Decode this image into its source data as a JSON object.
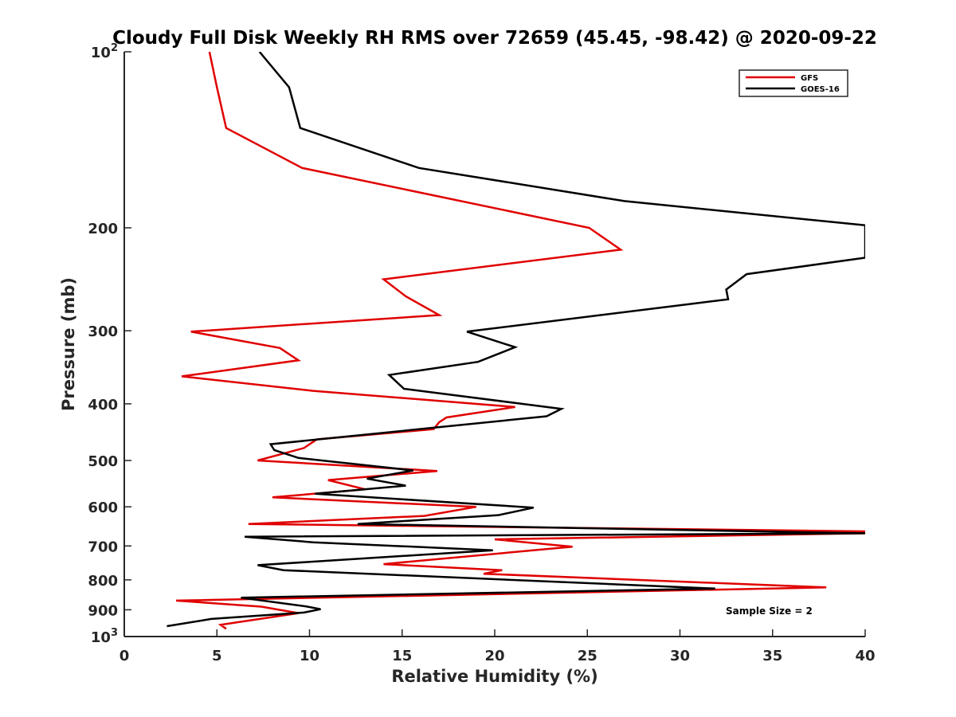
{
  "chart_data": {
    "type": "line",
    "title": "Cloudy Full Disk Weekly RH RMS over 72659 (45.45, -98.42) @ 2020-09-22",
    "xlabel": "Relative Humidity (%)",
    "ylabel": "Pressure (mb)",
    "xlim": [
      0,
      40
    ],
    "ylim": [
      100,
      1000
    ],
    "y_scale": "log",
    "y_reversed": true,
    "grid": false,
    "legend_position": "top-right",
    "xticks": [
      "0",
      "5",
      "10",
      "15",
      "20",
      "25",
      "30",
      "35",
      "40"
    ],
    "yticks": [
      {
        "value": 100,
        "base": "10",
        "exp": "2"
      },
      {
        "value": 200,
        "base": "200",
        "exp": ""
      },
      {
        "value": 300,
        "base": "300",
        "exp": ""
      },
      {
        "value": 400,
        "base": "400",
        "exp": ""
      },
      {
        "value": 500,
        "base": "500",
        "exp": ""
      },
      {
        "value": 600,
        "base": "600",
        "exp": ""
      },
      {
        "value": 700,
        "base": "700",
        "exp": ""
      },
      {
        "value": 800,
        "base": "800",
        "exp": ""
      },
      {
        "value": 900,
        "base": "900",
        "exp": ""
      },
      {
        "value": 1000,
        "base": "10",
        "exp": "3"
      }
    ],
    "annotation": "Sample Size = 2",
    "series": [
      {
        "name": "GFS",
        "color": "#e00000",
        "points": [
          [
            4.6,
            100
          ],
          [
            5.0,
            115
          ],
          [
            5.5,
            135
          ],
          [
            9.6,
            158
          ],
          [
            25.1,
            200
          ],
          [
            26.8,
            218
          ],
          [
            14.0,
            245
          ],
          [
            15.2,
            262
          ],
          [
            17.0,
            282
          ],
          [
            3.6,
            301
          ],
          [
            8.4,
            321
          ],
          [
            9.4,
            337
          ],
          [
            3.1,
            359
          ],
          [
            10.2,
            380
          ],
          [
            21.1,
            405
          ],
          [
            17.4,
            422
          ],
          [
            17.0,
            430
          ],
          [
            16.7,
            442
          ],
          [
            10.4,
            460
          ],
          [
            9.7,
            476
          ],
          [
            7.2,
            500
          ],
          [
            16.9,
            521
          ],
          [
            11.0,
            540
          ],
          [
            13.0,
            560
          ],
          [
            8.0,
            578
          ],
          [
            19.0,
            600
          ],
          [
            16.2,
            622
          ],
          [
            6.7,
            642
          ],
          [
            40.0,
            661
          ],
          [
            40.0,
            666
          ],
          [
            20.0,
            682
          ],
          [
            24.2,
            702
          ],
          [
            14.0,
            752
          ],
          [
            20.4,
            770
          ],
          [
            19.4,
            781
          ],
          [
            37.9,
            824
          ],
          [
            2.8,
            868
          ],
          [
            7.4,
            889
          ],
          [
            9.4,
            912
          ],
          [
            5.2,
            955
          ],
          [
            5.5,
            970
          ]
        ]
      },
      {
        "name": "GOES-16",
        "color": "#000000",
        "points": [
          [
            7.3,
            100
          ],
          [
            8.9,
            115
          ],
          [
            9.5,
            135
          ],
          [
            15.9,
            158
          ],
          [
            27.0,
            180
          ],
          [
            40.0,
            198
          ],
          [
            40.0,
            225
          ],
          [
            33.6,
            240
          ],
          [
            32.5,
            255
          ],
          [
            32.6,
            265
          ],
          [
            18.5,
            301
          ],
          [
            21.1,
            320
          ],
          [
            19.1,
            339
          ],
          [
            14.3,
            357
          ],
          [
            15.1,
            377
          ],
          [
            23.6,
            408
          ],
          [
            22.8,
            420
          ],
          [
            7.9,
            469
          ],
          [
            8.1,
            480
          ],
          [
            9.4,
            495
          ],
          [
            15.6,
            520
          ],
          [
            13.1,
            537
          ],
          [
            15.2,
            552
          ],
          [
            10.3,
            570
          ],
          [
            22.1,
            602
          ],
          [
            20.2,
            620
          ],
          [
            12.6,
            642
          ],
          [
            36.5,
            663
          ],
          [
            40.0,
            666
          ],
          [
            6.5,
            675
          ],
          [
            10.2,
            690
          ],
          [
            19.9,
            712
          ],
          [
            7.2,
            755
          ],
          [
            8.6,
            770
          ],
          [
            31.9,
            828
          ],
          [
            6.3,
            858
          ],
          [
            9.8,
            888
          ],
          [
            10.6,
            898
          ],
          [
            9.7,
            910
          ],
          [
            4.7,
            933
          ],
          [
            2.3,
            960
          ]
        ]
      }
    ]
  }
}
